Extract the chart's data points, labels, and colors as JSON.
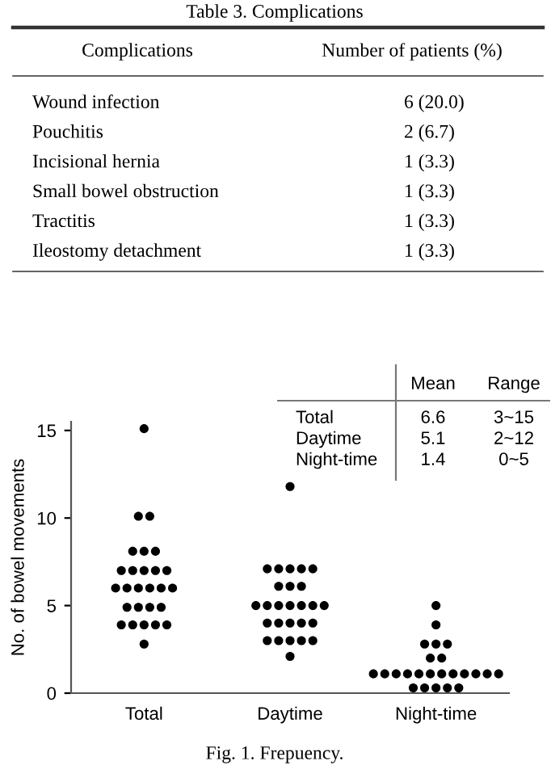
{
  "chart_data": [
    {
      "type": "other",
      "title": "Table 3. Complications",
      "annotations": [
        "Complications",
        "Number of patients (%)",
        "Wound infection",
        "6 (20.0)",
        "Pouchitis",
        "2 (6.7)",
        "Incisional hernia",
        "1 (3.3)",
        "Small bowel obstruction",
        "1 (3.3)",
        "Tractitis",
        "1 (3.3)",
        "Ileostomy detachment",
        "1 (3.3)"
      ]
    },
    {
      "type": "scatter",
      "title": "Fig. 1. Frepuency.",
      "ylabel": "No. of bowel movements",
      "categories": [
        "Total",
        "Daytime",
        "Night-time"
      ],
      "series": [
        {
          "color": "#000000",
          "x": [
            "Total",
            "Total",
            "Total",
            "Total",
            "Total",
            "Total",
            "Total",
            "Total",
            "Total",
            "Total",
            "Total",
            "Total",
            "Total",
            "Total",
            "Total",
            "Total",
            "Total",
            "Total",
            "Total",
            "Total",
            "Total",
            "Total",
            "Total",
            "Total",
            "Total",
            "Total",
            "Total"
          ],
          "values": [
            15.1,
            10.1,
            10.1,
            8.1,
            8.1,
            8.1,
            7,
            7,
            7,
            7,
            7,
            6,
            6,
            6,
            6,
            6,
            6,
            4.9,
            4.9,
            4.9,
            4.9,
            3.9,
            3.9,
            3.9,
            3.9,
            3.9,
            2.8
          ]
        },
        {
          "color": "#000000",
          "x": [
            "Daytime",
            "Daytime",
            "Daytime",
            "Daytime",
            "Daytime",
            "Daytime",
            "Daytime",
            "Daytime",
            "Daytime",
            "Daytime",
            "Daytime",
            "Daytime",
            "Daytime",
            "Daytime",
            "Daytime",
            "Daytime",
            "Daytime",
            "Daytime",
            "Daytime",
            "Daytime",
            "Daytime",
            "Daytime",
            "Daytime",
            "Daytime",
            "Daytime",
            "Daytime",
            "Daytime"
          ],
          "values": [
            11.8,
            7.1,
            7.1,
            7.1,
            7.1,
            7.1,
            6.1,
            6.1,
            6.1,
            5,
            5,
            5,
            5,
            5,
            5,
            5,
            4,
            4,
            4,
            4,
            4,
            3,
            3,
            3,
            3,
            3,
            2.1
          ]
        },
        {
          "color": "#000000",
          "x": [
            "Night-time",
            "Night-time",
            "Night-time",
            "Night-time",
            "Night-time",
            "Night-time",
            "Night-time",
            "Night-time",
            "Night-time",
            "Night-time",
            "Night-time",
            "Night-time",
            "Night-time",
            "Night-time",
            "Night-time",
            "Night-time",
            "Night-time",
            "Night-time",
            "Night-time",
            "Night-time",
            "Night-time",
            "Night-time",
            "Night-time",
            "Night-time"
          ],
          "values": [
            5,
            3.9,
            2.8,
            2.8,
            2.8,
            2,
            2,
            1.1,
            1.1,
            1.1,
            1.1,
            1.1,
            1.1,
            1.1,
            1.1,
            1.1,
            1.1,
            1.1,
            1.1,
            0.3,
            0.3,
            0.3,
            0.3,
            0.3
          ]
        }
      ],
      "marker": "circle",
      "ylim": [
        0,
        15.5
      ],
      "yticks": [
        0,
        5,
        10,
        15
      ],
      "grid": false,
      "annotations": [
        "Mean",
        "Range",
        "Total",
        "6.6",
        "3~15",
        "Daytime",
        "5.1",
        "2~12",
        "Night-time",
        "1.4",
        "0~5"
      ]
    }
  ]
}
